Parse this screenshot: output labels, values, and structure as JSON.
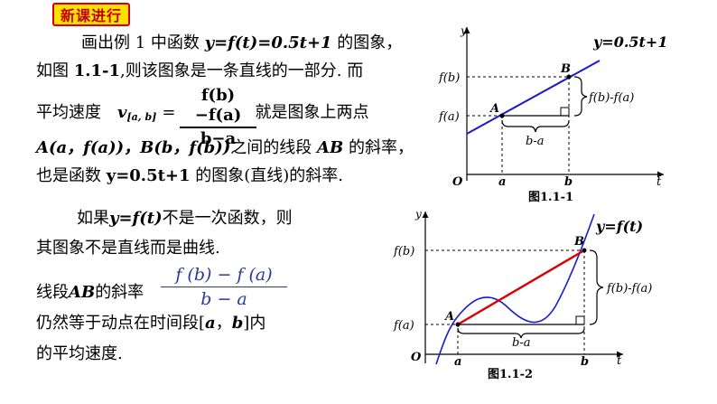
{
  "badge": "新课进行",
  "para1": {
    "l1_pre": "画出例 1 中函数 ",
    "l1_func": "y=f(t)=0.5t+1",
    "l1_post": " 的图象，",
    "l2_a": "如图 ",
    "l2_fig": "1.1-1",
    "l2_b": ",则该图象是一条直线的一部分. 而",
    "l3_pre": "平均速度",
    "l3_v": "v",
    "l3_sub": "[a, b]",
    "l3_eq": "=",
    "l3_post": "就是图象上两点",
    "frac_num": "f(b)−f(a)",
    "frac_den": "b−a",
    "l4_pts": "A(a，f(a))，B(b，f(b))",
    "l4_mid": "之间的线段 ",
    "l4_ab": "AB",
    "l4_post": " 的斜率，",
    "l5_pre": "也是函数 ",
    "l5_func": "y=0.5t+1",
    "l5_post": " 的图象(直线)的斜率."
  },
  "para2": {
    "l1_pre": "如果",
    "l1_func": "y=f(t)",
    "l1_post": "不是一次函数，则",
    "l2": "其图象不是直线而是曲线.",
    "l3_pre": "线段",
    "l3_ab": "AB",
    "l3_post": "的斜率",
    "frac_num": "f (b) − f (a)",
    "frac_den": "b − a",
    "l4_pre": "仍然等于动点在时间段[",
    "l4_a": "a",
    "l4_sep": "，",
    "l4_b": "b",
    "l4_post": "]内",
    "l5": "的平均速度."
  },
  "fig1": {
    "y_axis": "y",
    "t_axis": "t",
    "origin": "O",
    "func_label": "y=0.5t+1",
    "point_a": "A",
    "point_b": "B",
    "fa": "f(a)",
    "fb": "f(b)",
    "a": "a",
    "b": "b",
    "brace_v": "f(b)-f(a)",
    "brace_h": "b-a",
    "caption": "图1.1-1"
  },
  "fig2": {
    "y_axis": "y",
    "t_axis": "t",
    "origin": "O",
    "func_label": "y=f(t)",
    "point_a": "A",
    "point_b": "B",
    "fa": "f(a)",
    "fb": "f(b)",
    "a": "a",
    "b": "b",
    "brace_v": "f(b)-f(a)",
    "brace_h": "b-a",
    "caption": "图1.1-2"
  },
  "colors": {
    "line": "#1a1acc",
    "secant": "#dd0000",
    "badge_bg": "#ffe000",
    "badge_text": "#c00000",
    "formula": "#2a3a9a"
  }
}
